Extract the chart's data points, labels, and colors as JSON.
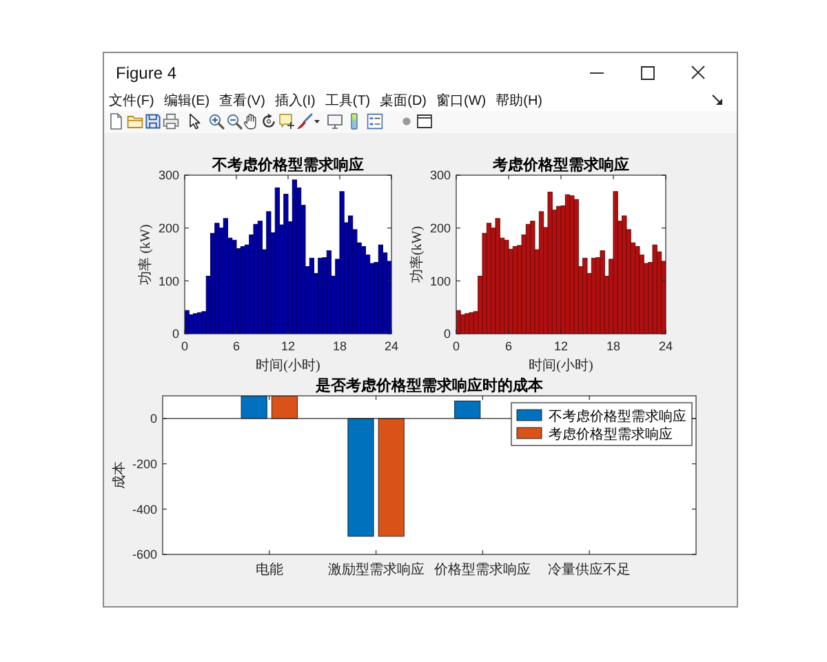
{
  "chart_data": [
    {
      "type": "other",
      "title": "Figure 4",
      "annotations": [
        "文件(F)",
        "编辑(E)",
        "查看(V)",
        "插入(I)",
        "工具(T)",
        "桌面(D)",
        "窗口(W)",
        "帮助(H)"
      ]
    },
    {
      "type": "bar",
      "title": "不考虑价格型需求响应",
      "xlabel": "时间(小时)",
      "ylabel": "功率 (kW)",
      "x": [
        0.25,
        0.75,
        1.25,
        1.75,
        2.25,
        2.75,
        3.25,
        3.75,
        4.25,
        4.75,
        5.25,
        5.75,
        6.25,
        6.75,
        7.25,
        7.75,
        8.25,
        8.75,
        9.25,
        9.75,
        10.25,
        10.75,
        11.25,
        11.75,
        12.25,
        12.75,
        13.25,
        13.75,
        14.25,
        14.75,
        15.25,
        15.75,
        16.25,
        16.75,
        17.25,
        17.75,
        18.25,
        18.75,
        19.25,
        19.75,
        20.25,
        20.75,
        21.25,
        21.75,
        22.25,
        22.75,
        23.25,
        23.75
      ],
      "values": [
        44,
        36,
        38,
        40,
        42,
        109,
        190,
        209,
        200,
        218,
        181,
        177,
        161,
        165,
        168,
        187,
        207,
        213,
        159,
        231,
        191,
        276,
        206,
        264,
        212,
        291,
        276,
        243,
        127,
        143,
        114,
        143,
        144,
        157,
        109,
        141,
        269,
        210,
        223,
        197,
        172,
        165,
        149,
        133,
        135,
        168,
        153,
        137
      ],
      "color": "#0000a0",
      "xlim": [
        0,
        24
      ],
      "xticks": [
        0,
        6,
        12,
        18,
        24
      ],
      "ylim": [
        0,
        300
      ],
      "yticks": [
        0,
        100,
        200,
        300
      ]
    },
    {
      "type": "bar",
      "title": "考虑价格型需求响应",
      "xlabel": "时间(小时)",
      "ylabel": "功率(kW)",
      "x": [
        0.25,
        0.75,
        1.25,
        1.75,
        2.25,
        2.75,
        3.25,
        3.75,
        4.25,
        4.75,
        5.25,
        5.75,
        6.25,
        6.75,
        7.25,
        7.75,
        8.25,
        8.75,
        9.25,
        9.75,
        10.25,
        10.75,
        11.25,
        11.75,
        12.25,
        12.75,
        13.25,
        13.75,
        14.25,
        14.75,
        15.25,
        15.75,
        16.25,
        16.75,
        17.25,
        17.75,
        18.25,
        18.75,
        19.25,
        19.75,
        20.25,
        20.75,
        21.25,
        21.75,
        22.25,
        22.75,
        23.25,
        23.75
      ],
      "values": [
        44,
        36,
        38,
        40,
        42,
        109,
        190,
        209,
        200,
        218,
        181,
        177,
        160,
        165,
        167,
        187,
        207,
        213,
        159,
        231,
        201,
        268,
        234,
        241,
        242,
        263,
        261,
        254,
        127,
        143,
        114,
        143,
        144,
        157,
        109,
        141,
        269,
        213,
        223,
        197,
        172,
        165,
        149,
        133,
        135,
        168,
        155,
        137
      ],
      "color": "#b01010",
      "xlim": [
        0,
        24
      ],
      "xticks": [
        0,
        6,
        12,
        18,
        24
      ],
      "ylim": [
        0,
        300
      ],
      "yticks": [
        0,
        100,
        200,
        300
      ]
    },
    {
      "type": "bar",
      "title": "是否考虑价格型需求响应时的成本",
      "ylabel": "成本",
      "categories": [
        "电能",
        "激励型需求响应",
        "价格型需求响应",
        "冷量供应不足"
      ],
      "series": [
        {
          "name": "不考虑价格型需求响应",
          "color": "#0072bd",
          "values": [
            100,
            -520,
            77,
            null
          ]
        },
        {
          "name": "考虑价格型需求响应",
          "color": "#d95319",
          "values": [
            100,
            -520,
            null,
            null
          ]
        }
      ],
      "ylim": [
        -600,
        100
      ],
      "yticks": [
        -600,
        -400,
        -200,
        0
      ],
      "legend": "top right"
    }
  ]
}
